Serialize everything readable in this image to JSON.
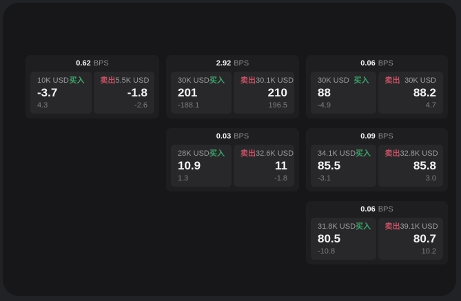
{
  "labels": {
    "buy": "买入",
    "sell": "卖出",
    "bps_suffix": "BPS"
  },
  "colors": {
    "buy": "#3fa46a",
    "sell": "#c25265",
    "panel_bg": "#171719",
    "card_bg": "#1e1e21",
    "cell_bg": "#28282b"
  },
  "cards": [
    {
      "bps": "0.62",
      "buy": {
        "notional": "10K USD",
        "price": "-3.7",
        "delta": "4.3"
      },
      "sell": {
        "notional": "5.5K USD",
        "price": "-1.8",
        "delta": "-2.6"
      }
    },
    {
      "bps": "2.92",
      "buy": {
        "notional": "30K USD",
        "price": "201",
        "delta": "-188.1"
      },
      "sell": {
        "notional": "30.1K USD",
        "price": "210",
        "delta": "196.5"
      }
    },
    {
      "bps": "0.06",
      "buy": {
        "notional": "30K USD",
        "price": "88",
        "delta": "-4.9"
      },
      "sell": {
        "notional": "30K USD",
        "price": "88.2",
        "delta": "4.7"
      }
    },
    {
      "bps": "0.03",
      "buy": {
        "notional": "28K USD",
        "price": "10.9",
        "delta": "1.3"
      },
      "sell": {
        "notional": "32.6K USD",
        "price": "11",
        "delta": "-1.8"
      }
    },
    {
      "bps": "0.09",
      "buy": {
        "notional": "34.1K USD",
        "price": "85.5",
        "delta": "-3.1"
      },
      "sell": {
        "notional": "32.8K USD",
        "price": "85.8",
        "delta": "3.0"
      }
    },
    {
      "bps": "0.06",
      "buy": {
        "notional": "31.8K USD",
        "price": "80.5",
        "delta": "-10.8"
      },
      "sell": {
        "notional": "39.1K USD",
        "price": "80.7",
        "delta": "10.2"
      }
    }
  ]
}
